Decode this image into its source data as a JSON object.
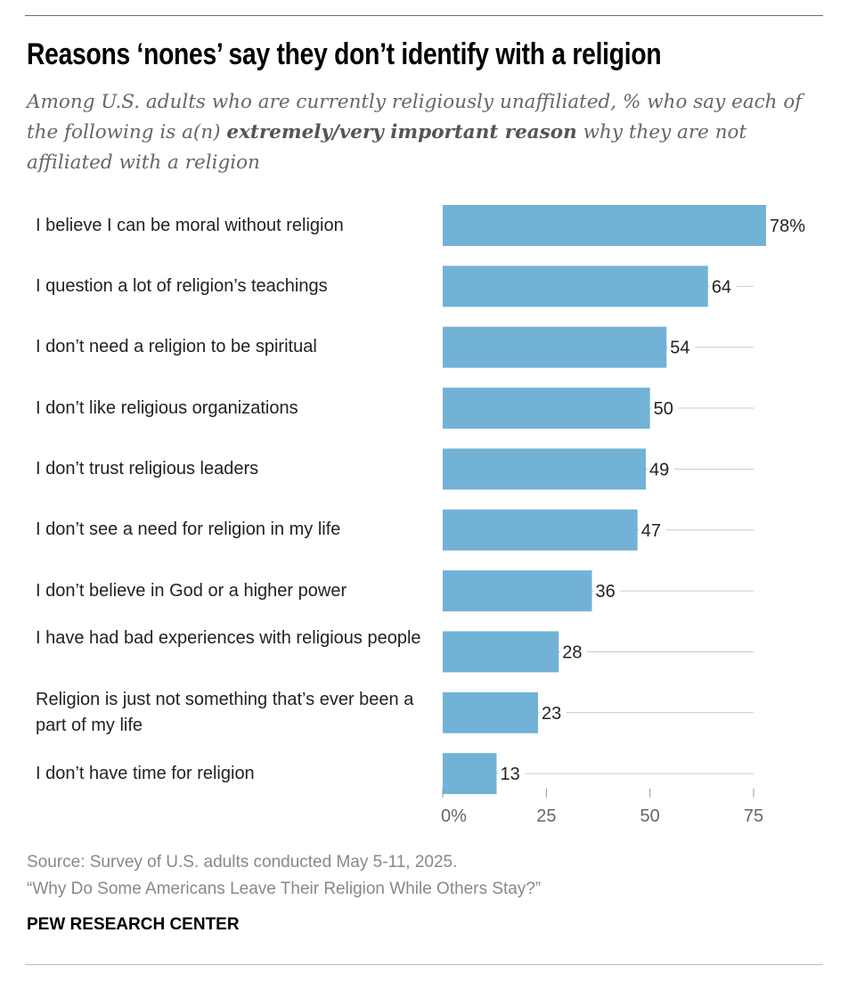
{
  "title": "Reasons ‘nones’ say they don’t identify with a religion",
  "subtitle": {
    "pre": "Among U.S. adults who are currently religiously unaffiliated, % who say each of the following is a(n) ",
    "bold": "extremely/very important reason",
    "post": " why they are not affiliated with a religion"
  },
  "chart_data": {
    "type": "bar",
    "orientation": "horizontal",
    "categories": [
      "I believe I can be moral without religion",
      "I question a lot of religion’s teachings",
      "I don’t need a religion to be spiritual",
      "I don’t like religious organizations",
      "I don’t trust religious leaders",
      "I don’t see a need for religion in my life",
      "I don’t believe in God or a higher power",
      "I have had bad experiences with religious people",
      "Religion is just not something that’s ever been a part of my life",
      "I don’t have time for religion"
    ],
    "values": [
      78,
      64,
      54,
      50,
      49,
      47,
      36,
      28,
      23,
      13
    ],
    "value_labels": [
      "78%",
      "64",
      "54",
      "50",
      "49",
      "47",
      "36",
      "28",
      "23",
      "13"
    ],
    "xlim": [
      0,
      75
    ],
    "ticks": [
      0,
      25,
      50,
      75
    ],
    "tick_labels": [
      "0%",
      "25",
      "50",
      "75"
    ],
    "bar_color": "#71b2d6",
    "grid": true
  },
  "footer": {
    "source": "Source: Survey of U.S. adults conducted May 5-11, 2025.",
    "report": "“Why Do Some Americans Leave Their Religion While Others Stay?”",
    "brand": "PEW RESEARCH CENTER"
  }
}
